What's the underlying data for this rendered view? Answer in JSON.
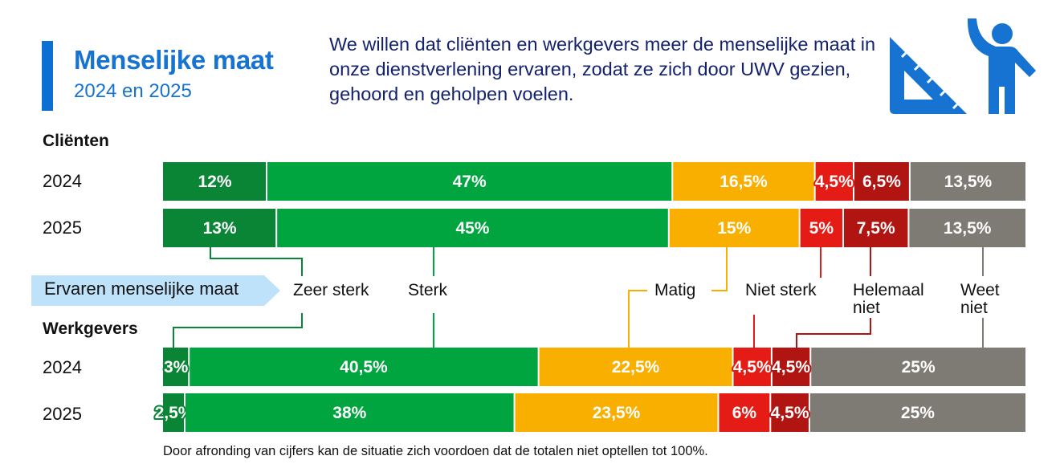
{
  "header": {
    "title": "Menselijke maat",
    "subtitle": "2024 en 2025",
    "intro": "We willen dat cliënten en werkgevers meer de menselijke maat in onze dienstverlening ervaren, zodat ze zich door UWV gezien, gehoord en geholpen voelen.",
    "icons": [
      "set-square-icon",
      "person-waving-icon"
    ]
  },
  "legend": {
    "title": "Ervaren menselijke maat"
  },
  "footnote": "Door afronding van cijfers kan de situatie zich voordoen dat de totalen niet optellen tot 100%.",
  "colors": {
    "zeer_sterk": "#098535",
    "sterk": "#00a540",
    "matig": "#f8af00",
    "niet_sterk": "#e51c16",
    "helemaal_niet": "#b11512",
    "weet_niet": "#7d7b73",
    "title_blue": "#1673d1",
    "intro_navy": "#14226e",
    "legend_bg": "#bfe2fb"
  },
  "chart_data": {
    "type": "bar",
    "orientation": "horizontal",
    "stacked": true,
    "unit": "%",
    "title": "Menselijke maat",
    "subtitle": "2024 en 2025",
    "legend_title": "Ervaren menselijke maat",
    "categories_legend": [
      "Zeer sterk",
      "Sterk",
      "Matig",
      "Niet sterk",
      "Helemaal niet",
      "Weet niet"
    ],
    "groups": [
      {
        "name": "Cliënten",
        "rows": [
          {
            "year": "2024",
            "values": [
              12,
              47,
              16.5,
              4.5,
              6.5,
              13.5
            ],
            "labels": [
              "12%",
              "47%",
              "16,5%",
              "4,5%",
              "6,5%",
              "13,5%"
            ]
          },
          {
            "year": "2025",
            "values": [
              13,
              45,
              15,
              5,
              7.5,
              13.5
            ],
            "labels": [
              "13%",
              "45%",
              "15%",
              "5%",
              "7,5%",
              "13,5%"
            ]
          }
        ]
      },
      {
        "name": "Werkgevers",
        "rows": [
          {
            "year": "2024",
            "values": [
              3,
              40.5,
              22.5,
              4.5,
              4.5,
              25
            ],
            "labels": [
              "3%",
              "40,5%",
              "22,5%",
              "4,5%",
              "4,5%",
              "25%"
            ]
          },
          {
            "year": "2025",
            "values": [
              2.5,
              38,
              23.5,
              6,
              4.5,
              25
            ],
            "labels": [
              "2,5%",
              "38%",
              "23,5%",
              "6%",
              "4,5%",
              "25%"
            ]
          }
        ]
      }
    ],
    "xlim": [
      0,
      100
    ],
    "grid": false,
    "legend": "middle"
  }
}
